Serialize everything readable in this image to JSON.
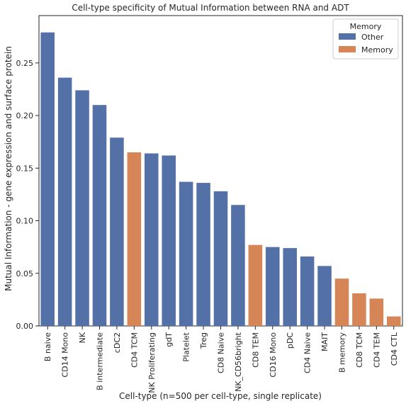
{
  "chart_data": {
    "type": "bar",
    "title": "Cell-type specificity of Mutual Information between RNA and ADT",
    "xlabel": "Cell-type (n=500 per cell-type, single replicate)",
    "ylabel": "Mutual Information - gene expression and surface protein",
    "ylim": [
      0,
      0.295
    ],
    "yticks": [
      0.0,
      0.05,
      0.1,
      0.15,
      0.2,
      0.25
    ],
    "ytick_labels": [
      "0.00",
      "0.05",
      "0.10",
      "0.15",
      "0.20",
      "0.25"
    ],
    "grid": false,
    "legend": {
      "title": "Memory",
      "placement": "top-right",
      "entries": [
        {
          "label": "Other",
          "color": "#5471a7"
        },
        {
          "label": "Memory",
          "color": "#d68556"
        }
      ]
    },
    "categories": [
      "B naive",
      "CD14 Mono",
      "NK",
      "B intermediate",
      "cDC2",
      "CD4 TCM",
      "NK Proliferating",
      "gdT",
      "Platelet",
      "Treg",
      "CD8 Naive",
      "NK_CD56bright",
      "CD8 TEM",
      "CD16 Mono",
      "pDC",
      "CD4 Naive",
      "MAIT",
      "B memory",
      "CD8 TCM",
      "CD4 TEM",
      "CD4 CTL"
    ],
    "values": [
      0.279,
      0.236,
      0.224,
      0.21,
      0.179,
      0.165,
      0.164,
      0.162,
      0.137,
      0.136,
      0.128,
      0.115,
      0.077,
      0.075,
      0.074,
      0.066,
      0.057,
      0.045,
      0.031,
      0.026,
      0.009
    ],
    "groups": [
      "Other",
      "Other",
      "Other",
      "Other",
      "Other",
      "Memory",
      "Other",
      "Other",
      "Other",
      "Other",
      "Other",
      "Other",
      "Memory",
      "Other",
      "Other",
      "Other",
      "Other",
      "Memory",
      "Memory",
      "Memory",
      "Memory"
    ]
  }
}
